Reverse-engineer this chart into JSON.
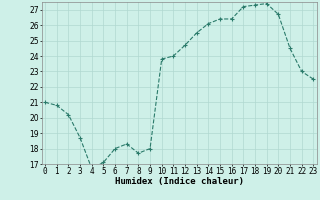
{
  "x": [
    0,
    1,
    2,
    3,
    4,
    5,
    6,
    7,
    8,
    9,
    10,
    11,
    12,
    13,
    14,
    15,
    16,
    17,
    18,
    19,
    20,
    21,
    22,
    23
  ],
  "y": [
    21.0,
    20.8,
    20.2,
    18.7,
    16.7,
    17.1,
    18.0,
    18.3,
    17.7,
    18.0,
    23.8,
    24.0,
    24.7,
    25.5,
    26.1,
    26.4,
    26.4,
    27.2,
    27.3,
    27.4,
    26.7,
    24.5,
    23.0,
    22.5
  ],
  "line_color": "#2a7a6a",
  "bg_color": "#cef0e8",
  "grid_color": "#b0d8d0",
  "xlabel": "Humidex (Indice chaleur)",
  "ylim": [
    17,
    27.5
  ],
  "xlim": [
    -0.3,
    23.3
  ],
  "yticks": [
    17,
    18,
    19,
    20,
    21,
    22,
    23,
    24,
    25,
    26,
    27
  ],
  "xticks": [
    0,
    1,
    2,
    3,
    4,
    5,
    6,
    7,
    8,
    9,
    10,
    11,
    12,
    13,
    14,
    15,
    16,
    17,
    18,
    19,
    20,
    21,
    22,
    23
  ],
  "marker": "+",
  "markersize": 3,
  "linewidth": 0.8,
  "xlabel_fontsize": 6.5,
  "tick_fontsize": 5.5
}
